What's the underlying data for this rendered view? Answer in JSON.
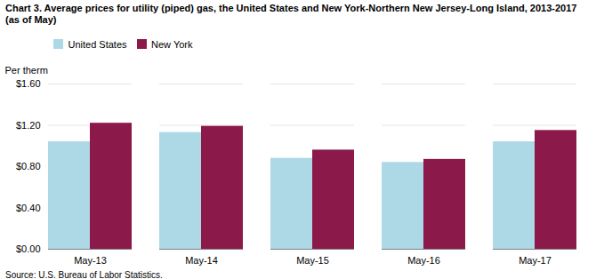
{
  "chart_data": {
    "type": "bar",
    "title": "Chart 3. Average prices for utility (piped) gas, the United States and New York-Northern New Jersey-Long Island, 2013-2017 (as of May)",
    "ylabel": "Per therm",
    "source": "Source: U.S. Bureau of Labor Statistics.",
    "categories": [
      "May-13",
      "May-14",
      "May-15",
      "May-16",
      "May-17"
    ],
    "series": [
      {
        "name": "United States",
        "color": "#ADD8E6",
        "values": [
          1.04,
          1.13,
          0.88,
          0.84,
          1.04
        ]
      },
      {
        "name": "New York",
        "color": "#8B1A4A",
        "values": [
          1.22,
          1.19,
          0.96,
          0.87,
          1.15
        ]
      }
    ],
    "ylim": [
      0.0,
      1.6
    ],
    "yticks": [
      {
        "value": 0,
        "label": "$0.00"
      },
      {
        "value": 0.4,
        "label": "$0.40"
      },
      {
        "value": 0.8,
        "label": "$0.80"
      },
      {
        "value": 1.2,
        "label": "$1.20"
      },
      {
        "value": 1.6,
        "label": "$1.60"
      }
    ],
    "grid": true,
    "legend": "upper left"
  }
}
